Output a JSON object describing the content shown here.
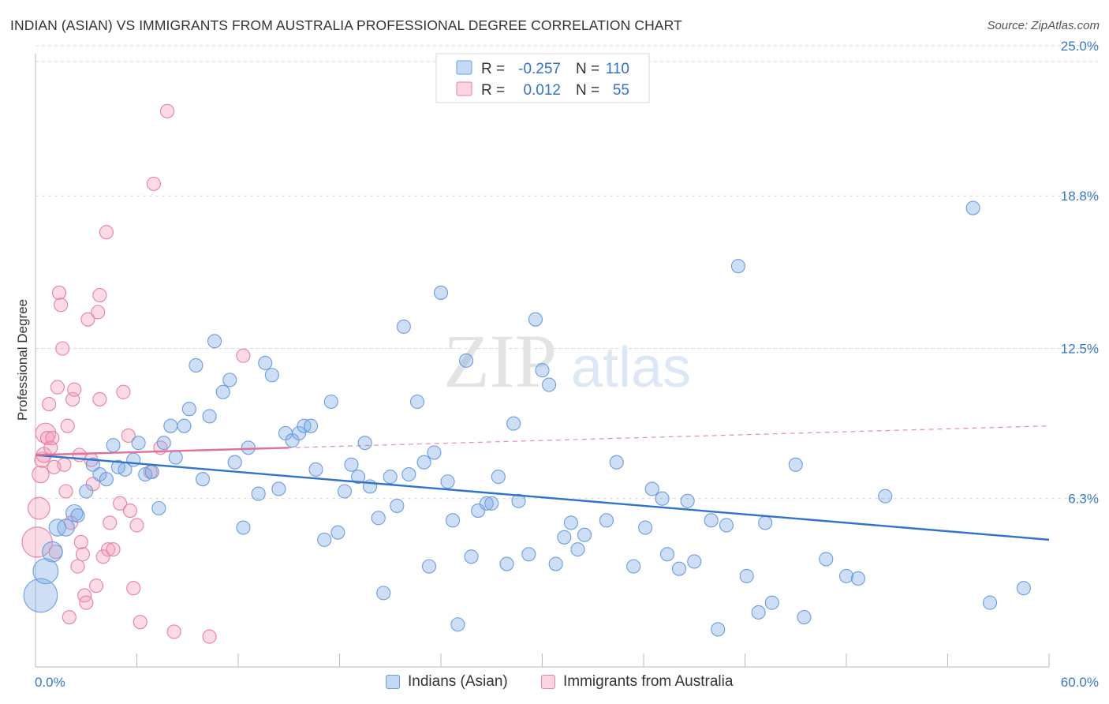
{
  "title": "INDIAN (ASIAN) VS IMMIGRANTS FROM AUSTRALIA PROFESSIONAL DEGREE CORRELATION CHART",
  "source": "Source: ZipAtlas.com",
  "watermark": {
    "zip": "ZIP",
    "atlas": "atlas"
  },
  "colors": {
    "blue": "#6a9de0",
    "blue_fill": "rgba(125,170,230,0.38)",
    "blue_line": "#2f73cc",
    "pink": "#e9809f",
    "pink_fill": "rgba(245,160,190,0.38)",
    "pink_line": "#e0709a",
    "axis_label": "#3a78c8",
    "grid": "#d9d9d9"
  },
  "stats": {
    "r_label": "R =",
    "n_label": "N =",
    "blue": {
      "r": "-0.257",
      "n": "110"
    },
    "pink": {
      "r": "0.012",
      "n": "55"
    }
  },
  "legend": {
    "blue": "Indians (Asian)",
    "pink": "Immigrants from Australia"
  },
  "chart_data": {
    "type": "scatter",
    "xlabel": "",
    "ylabel": "Professional Degree",
    "xlim": [
      0,
      60
    ],
    "ylim": [
      0,
      25
    ],
    "x_ticks": [
      "0.0%",
      "60.0%"
    ],
    "y_ticks": [
      {
        "v": 6.3,
        "label": "6.3%"
      },
      {
        "v": 12.5,
        "label": "12.5%"
      },
      {
        "v": 18.8,
        "label": "18.8%"
      },
      {
        "v": 25.0,
        "label": "25.0%"
      }
    ],
    "grid": true,
    "series": [
      {
        "name": "Indians (Asian)",
        "color": "blue",
        "trend": {
          "x": [
            0,
            60
          ],
          "y": [
            8.1,
            4.6
          ],
          "style": "solid"
        },
        "points": [
          [
            0.3,
            2.3,
            2.0
          ],
          [
            0.6,
            3.3,
            1.5
          ],
          [
            1.0,
            4.1,
            1.2
          ],
          [
            1.3,
            5.1,
            1.0
          ],
          [
            1.8,
            5.1,
            1.0
          ],
          [
            2.3,
            5.7,
            1.0
          ],
          [
            2.5,
            5.6,
            0.8
          ],
          [
            3.0,
            6.6,
            0.8
          ],
          [
            3.4,
            7.7,
            0.8
          ],
          [
            3.8,
            7.3,
            0.8
          ],
          [
            4.2,
            7.1,
            0.8
          ],
          [
            4.6,
            8.5,
            0.8
          ],
          [
            4.9,
            7.6,
            0.8
          ],
          [
            5.3,
            7.5,
            0.8
          ],
          [
            5.8,
            7.9,
            0.8
          ],
          [
            6.1,
            8.6,
            0.8
          ],
          [
            6.5,
            7.3,
            0.8
          ],
          [
            6.9,
            7.4,
            0.8
          ],
          [
            7.3,
            5.9,
            0.8
          ],
          [
            7.6,
            8.6,
            0.8
          ],
          [
            8.0,
            9.3,
            0.8
          ],
          [
            8.3,
            8.0,
            0.8
          ],
          [
            8.8,
            9.3,
            0.8
          ],
          [
            9.1,
            10.0,
            0.8
          ],
          [
            9.5,
            11.8,
            0.8
          ],
          [
            9.9,
            7.1,
            0.8
          ],
          [
            10.3,
            9.7,
            0.8
          ],
          [
            10.6,
            12.8,
            0.8
          ],
          [
            11.1,
            10.7,
            0.8
          ],
          [
            11.5,
            11.2,
            0.8
          ],
          [
            11.8,
            7.8,
            0.8
          ],
          [
            12.3,
            5.1,
            0.8
          ],
          [
            12.6,
            8.4,
            0.8
          ],
          [
            13.2,
            6.5,
            0.8
          ],
          [
            13.6,
            11.9,
            0.8
          ],
          [
            14.0,
            11.4,
            0.8
          ],
          [
            14.4,
            6.7,
            0.8
          ],
          [
            14.8,
            9.0,
            0.8
          ],
          [
            15.2,
            8.7,
            0.8
          ],
          [
            15.6,
            9.0,
            0.8
          ],
          [
            15.9,
            9.3,
            0.8
          ],
          [
            16.3,
            9.3,
            0.8
          ],
          [
            16.6,
            7.5,
            0.8
          ],
          [
            17.1,
            4.6,
            0.8
          ],
          [
            17.5,
            10.3,
            0.8
          ],
          [
            17.9,
            4.9,
            0.8
          ],
          [
            18.3,
            6.6,
            0.8
          ],
          [
            18.7,
            7.7,
            0.8
          ],
          [
            19.1,
            7.2,
            0.8
          ],
          [
            19.5,
            8.6,
            0.8
          ],
          [
            19.8,
            6.8,
            0.8
          ],
          [
            20.3,
            5.5,
            0.8
          ],
          [
            20.6,
            2.4,
            0.8
          ],
          [
            21.0,
            7.2,
            0.8
          ],
          [
            21.4,
            6.0,
            0.8
          ],
          [
            21.8,
            13.4,
            0.8
          ],
          [
            22.1,
            7.3,
            0.8
          ],
          [
            22.6,
            10.3,
            0.8
          ],
          [
            23.0,
            7.8,
            0.8
          ],
          [
            23.3,
            3.5,
            0.8
          ],
          [
            23.6,
            8.2,
            0.8
          ],
          [
            24.0,
            14.8,
            0.8
          ],
          [
            24.4,
            7.0,
            0.8
          ],
          [
            24.7,
            5.4,
            0.8
          ],
          [
            25.0,
            1.1,
            0.8
          ],
          [
            25.5,
            12.0,
            0.8
          ],
          [
            25.8,
            3.9,
            0.8
          ],
          [
            26.2,
            5.8,
            0.8
          ],
          [
            26.7,
            6.1,
            0.8
          ],
          [
            27.0,
            6.1,
            0.8
          ],
          [
            27.4,
            7.2,
            0.8
          ],
          [
            27.9,
            3.6,
            0.8
          ],
          [
            28.3,
            9.4,
            0.8
          ],
          [
            28.6,
            6.2,
            0.8
          ],
          [
            29.2,
            4.0,
            0.8
          ],
          [
            29.6,
            13.7,
            0.8
          ],
          [
            30.0,
            11.6,
            0.8
          ],
          [
            30.4,
            11.0,
            0.8
          ],
          [
            30.8,
            3.6,
            0.8
          ],
          [
            31.3,
            4.7,
            0.8
          ],
          [
            31.7,
            5.3,
            0.8
          ],
          [
            32.1,
            4.2,
            0.8
          ],
          [
            32.5,
            4.8,
            0.8
          ],
          [
            33.8,
            5.4,
            0.8
          ],
          [
            34.4,
            7.8,
            0.8
          ],
          [
            35.4,
            3.5,
            0.8
          ],
          [
            36.1,
            5.1,
            0.8
          ],
          [
            36.5,
            6.7,
            0.8
          ],
          [
            37.1,
            6.3,
            0.8
          ],
          [
            37.4,
            4.0,
            0.8
          ],
          [
            38.1,
            3.4,
            0.8
          ],
          [
            38.6,
            6.2,
            0.8
          ],
          [
            39.0,
            3.7,
            0.8
          ],
          [
            40.0,
            5.4,
            0.8
          ],
          [
            40.4,
            0.9,
            0.8
          ],
          [
            40.9,
            5.2,
            0.8
          ],
          [
            41.6,
            15.9,
            0.8
          ],
          [
            42.1,
            3.1,
            0.8
          ],
          [
            42.8,
            1.6,
            0.8
          ],
          [
            43.2,
            5.3,
            0.8
          ],
          [
            43.6,
            2.0,
            0.8
          ],
          [
            45.0,
            7.7,
            0.8
          ],
          [
            45.5,
            1.4,
            0.8
          ],
          [
            46.8,
            3.8,
            0.8
          ],
          [
            48.0,
            3.1,
            0.8
          ],
          [
            48.7,
            3.0,
            0.8
          ],
          [
            50.3,
            6.4,
            0.8
          ],
          [
            55.5,
            18.3,
            0.8
          ],
          [
            56.5,
            2.0,
            0.8
          ],
          [
            58.5,
            2.6,
            0.8
          ]
        ]
      },
      {
        "name": "Immigrants from Australia",
        "color": "pink",
        "trend": {
          "x": [
            0,
            15
          ],
          "y": [
            8.1,
            8.4
          ],
          "style": "solid",
          "extended": {
            "x": [
              0,
              60
            ],
            "y": [
              8.1,
              9.3
            ]
          }
        },
        "points": [
          [
            0.1,
            4.5,
            1.8
          ],
          [
            0.2,
            5.9,
            1.3
          ],
          [
            0.3,
            7.3,
            1.0
          ],
          [
            0.4,
            7.9,
            0.9
          ],
          [
            0.5,
            8.1,
            0.9
          ],
          [
            0.6,
            9.0,
            1.2
          ],
          [
            0.7,
            8.8,
            0.8
          ],
          [
            0.8,
            10.2,
            0.8
          ],
          [
            0.9,
            8.4,
            0.8
          ],
          [
            1.0,
            8.8,
            0.8
          ],
          [
            1.1,
            7.6,
            0.8
          ],
          [
            1.2,
            4.1,
            0.8
          ],
          [
            1.3,
            10.9,
            0.8
          ],
          [
            1.4,
            14.8,
            0.8
          ],
          [
            1.5,
            14.3,
            0.8
          ],
          [
            1.6,
            12.5,
            0.8
          ],
          [
            1.7,
            7.7,
            0.8
          ],
          [
            1.8,
            6.6,
            0.8
          ],
          [
            1.9,
            9.3,
            0.8
          ],
          [
            2.0,
            1.4,
            0.8
          ],
          [
            2.1,
            5.3,
            0.8
          ],
          [
            2.2,
            10.4,
            0.8
          ],
          [
            2.3,
            10.8,
            0.8
          ],
          [
            2.5,
            3.5,
            0.8
          ],
          [
            2.6,
            8.1,
            0.8
          ],
          [
            2.7,
            4.5,
            0.8
          ],
          [
            2.8,
            4.0,
            0.8
          ],
          [
            2.9,
            2.3,
            0.8
          ],
          [
            3.0,
            2.0,
            0.8
          ],
          [
            3.1,
            13.7,
            0.8
          ],
          [
            3.3,
            7.9,
            0.8
          ],
          [
            3.4,
            6.9,
            0.8
          ],
          [
            3.6,
            2.7,
            0.8
          ],
          [
            3.7,
            14.0,
            0.8
          ],
          [
            3.8,
            10.4,
            0.8
          ],
          [
            3.8,
            14.7,
            0.8
          ],
          [
            4.0,
            3.9,
            0.8
          ],
          [
            4.2,
            17.3,
            0.8
          ],
          [
            4.3,
            4.2,
            0.8
          ],
          [
            4.4,
            5.3,
            0.8
          ],
          [
            4.6,
            4.2,
            0.8
          ],
          [
            5.0,
            6.1,
            0.8
          ],
          [
            5.2,
            10.7,
            0.8
          ],
          [
            5.5,
            8.9,
            0.8
          ],
          [
            5.6,
            5.8,
            0.8
          ],
          [
            5.8,
            2.6,
            0.8
          ],
          [
            6.0,
            5.2,
            0.8
          ],
          [
            6.2,
            1.2,
            0.8
          ],
          [
            6.8,
            7.4,
            0.8
          ],
          [
            7.0,
            19.3,
            0.8
          ],
          [
            7.4,
            8.4,
            0.8
          ],
          [
            7.8,
            22.3,
            0.8
          ],
          [
            8.2,
            0.8,
            0.8
          ],
          [
            10.3,
            0.6,
            0.8
          ],
          [
            12.3,
            12.2,
            0.8
          ]
        ]
      }
    ]
  }
}
